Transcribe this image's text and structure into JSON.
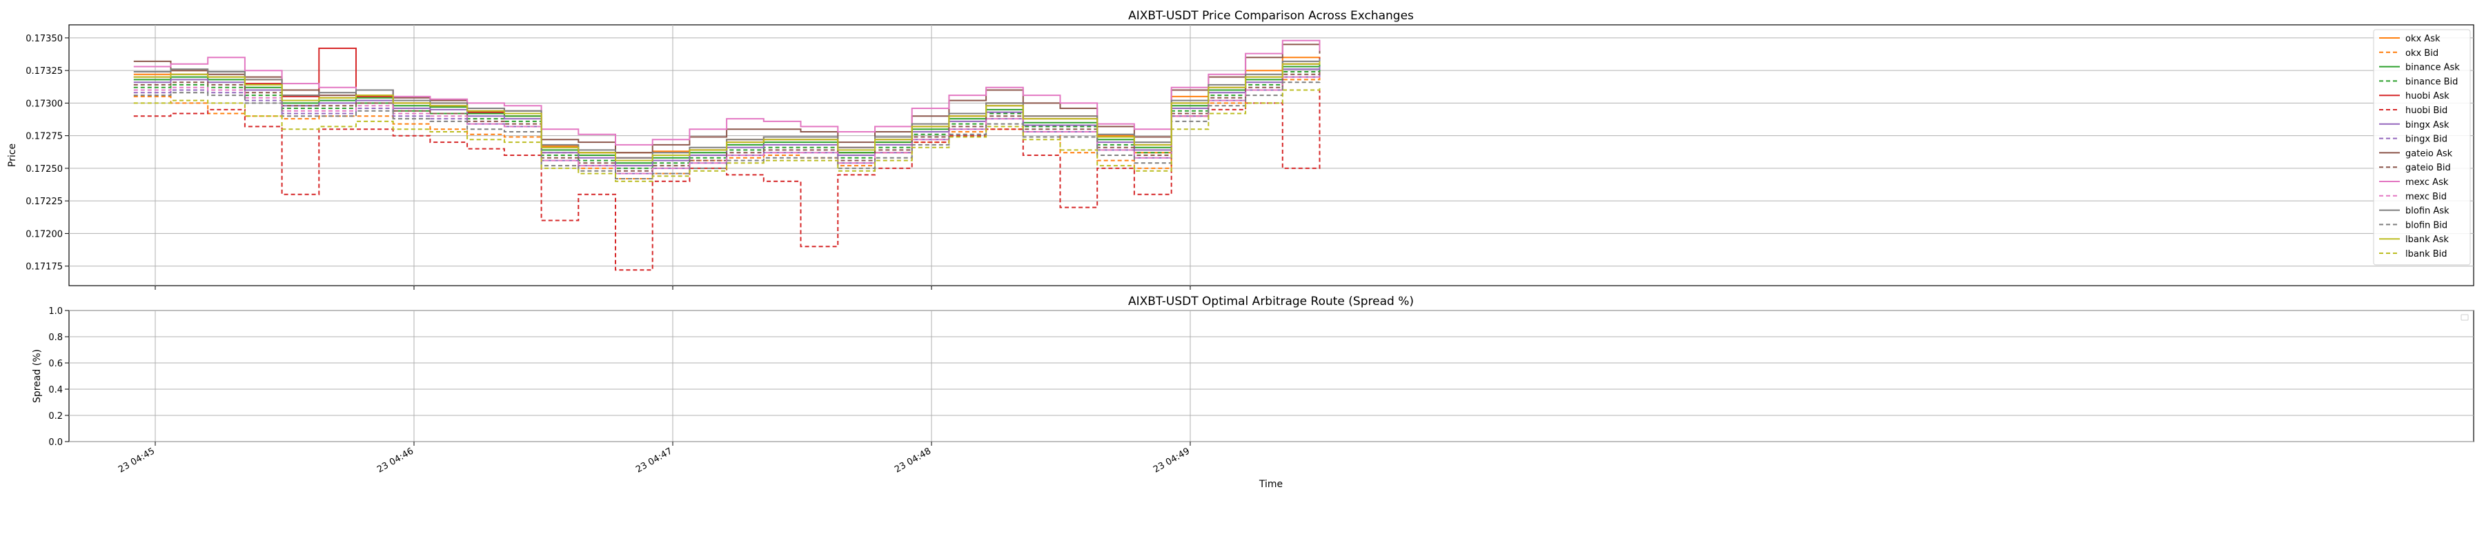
{
  "chart_data": [
    {
      "type": "line",
      "title": "AIXBT-USDT Price Comparison Across Exchanges",
      "xlabel": "",
      "ylabel": "Price",
      "ylim": [
        0.1716,
        0.1736
      ],
      "yticks": [
        0.17175,
        0.172,
        0.17225,
        0.1725,
        0.17275,
        0.173,
        0.17325,
        0.1735
      ],
      "ytick_labels": [
        "0.17175",
        "0.17200",
        "0.17225",
        "0.17250",
        "0.17275",
        "0.17300",
        "0.17325",
        "0.17350"
      ],
      "x_range": [
        "04:44:15",
        "04:49:45"
      ],
      "grid": true,
      "legend_position": "right",
      "series": [
        {
          "name": "okx Ask",
          "color": "#ff7f0e",
          "dashed": false,
          "values": [
            0.17322,
            0.17325,
            0.17324,
            0.17318,
            0.17306,
            0.17304,
            0.17306,
            0.173,
            0.173,
            0.17294,
            0.1729,
            0.17267,
            0.17262,
            0.17262,
            0.17263,
            0.17264,
            0.17272,
            0.17274,
            0.17274,
            0.17262,
            0.1727,
            0.17282,
            0.1729,
            0.173,
            0.1729,
            0.1729,
            0.17275,
            0.17262,
            0.17305,
            0.1731,
            0.17325,
            0.17335,
            0.1733
          ]
        },
        {
          "name": "okx Bid",
          "color": "#ff7f0e",
          "dashed": true,
          "values": [
            0.17305,
            0.173,
            0.17292,
            0.1729,
            0.17288,
            0.1729,
            0.1729,
            0.17284,
            0.1728,
            0.17276,
            0.17274,
            0.17262,
            0.1725,
            0.17242,
            0.17246,
            0.17256,
            0.17258,
            0.1726,
            0.17258,
            0.17252,
            0.17262,
            0.1727,
            0.17278,
            0.1728,
            0.17278,
            0.17262,
            0.17256,
            0.1725,
            0.1729,
            0.173,
            0.1731,
            0.17318,
            0.1732
          ]
        },
        {
          "name": "binance Ask",
          "color": "#2ca02c",
          "dashed": false,
          "values": [
            0.17318,
            0.1732,
            0.17318,
            0.17312,
            0.173,
            0.17302,
            0.17304,
            0.17298,
            0.17297,
            0.17292,
            0.1729,
            0.17264,
            0.1726,
            0.17254,
            0.17258,
            0.17262,
            0.17268,
            0.1727,
            0.1727,
            0.17262,
            0.1727,
            0.1728,
            0.17288,
            0.17295,
            0.17285,
            0.17285,
            0.17272,
            0.17266,
            0.17298,
            0.1731,
            0.17318,
            0.17328,
            0.1733
          ]
        },
        {
          "name": "binance Bid",
          "color": "#2ca02c",
          "dashed": true,
          "values": [
            0.17312,
            0.17314,
            0.17312,
            0.17306,
            0.17296,
            0.17296,
            0.173,
            0.17294,
            0.17292,
            0.17288,
            0.17286,
            0.1726,
            0.17256,
            0.1725,
            0.17254,
            0.17258,
            0.17264,
            0.17266,
            0.17266,
            0.17258,
            0.17266,
            0.17276,
            0.17284,
            0.17292,
            0.17282,
            0.17282,
            0.17268,
            0.17262,
            0.17294,
            0.17306,
            0.17314,
            0.17324,
            0.17326
          ]
        },
        {
          "name": "huobi Ask",
          "color": "#d62728",
          "dashed": false,
          "values": [
            0.1732,
            0.17322,
            0.1732,
            0.17315,
            0.17305,
            0.17342,
            0.17305,
            0.173,
            0.17298,
            0.17293,
            0.17292,
            0.17266,
            0.17262,
            0.17258,
            0.1726,
            0.17264,
            0.1727,
            0.17272,
            0.17272,
            0.17266,
            0.17272,
            0.17282,
            0.1729,
            0.17298,
            0.17288,
            0.17288,
            0.17274,
            0.17268,
            0.173,
            0.17312,
            0.1732,
            0.1733,
            0.17335
          ]
        },
        {
          "name": "huobi Bid",
          "color": "#d62728",
          "dashed": true,
          "values": [
            0.1729,
            0.17292,
            0.17295,
            0.17282,
            0.1723,
            0.1728,
            0.1728,
            0.17275,
            0.1727,
            0.17265,
            0.1726,
            0.1721,
            0.1723,
            0.17172,
            0.1724,
            0.1725,
            0.17245,
            0.1724,
            0.1719,
            0.17245,
            0.1725,
            0.1727,
            0.17275,
            0.1728,
            0.1726,
            0.1722,
            0.1725,
            0.1723,
            0.1729,
            0.17295,
            0.173,
            0.1725,
            0.1731
          ]
        },
        {
          "name": "bingx Ask",
          "color": "#9467bd",
          "dashed": false,
          "values": [
            0.17316,
            0.17318,
            0.17316,
            0.1731,
            0.17298,
            0.173,
            0.17302,
            0.17296,
            0.17295,
            0.1729,
            0.17288,
            0.17262,
            0.17258,
            0.17252,
            0.17256,
            0.1726,
            0.17266,
            0.17268,
            0.17268,
            0.1726,
            0.17268,
            0.17278,
            0.17286,
            0.17293,
            0.17283,
            0.17283,
            0.1727,
            0.17264,
            0.17296,
            0.17308,
            0.17316,
            0.17326,
            0.17328
          ]
        },
        {
          "name": "bingx Bid",
          "color": "#9467bd",
          "dashed": true,
          "values": [
            0.17308,
            0.1731,
            0.17308,
            0.17302,
            0.17292,
            0.17292,
            0.17296,
            0.1729,
            0.17288,
            0.17284,
            0.17282,
            0.17256,
            0.17252,
            0.17246,
            0.1725,
            0.17254,
            0.1726,
            0.17262,
            0.17262,
            0.17254,
            0.17262,
            0.17272,
            0.1728,
            0.17288,
            0.17278,
            0.17278,
            0.17264,
            0.17258,
            0.1729,
            0.17302,
            0.1731,
            0.1732,
            0.17322
          ]
        },
        {
          "name": "gateio Ask",
          "color": "#8c564b",
          "dashed": false,
          "values": [
            0.17332,
            0.17325,
            0.17322,
            0.1732,
            0.1731,
            0.17306,
            0.1731,
            0.17304,
            0.17302,
            0.17296,
            0.17294,
            0.17272,
            0.1727,
            0.17262,
            0.17268,
            0.17274,
            0.1728,
            0.1728,
            0.17278,
            0.1727,
            0.17278,
            0.1729,
            0.17302,
            0.1731,
            0.173,
            0.17296,
            0.17282,
            0.17274,
            0.1731,
            0.1732,
            0.17335,
            0.17345,
            0.17338
          ]
        },
        {
          "name": "gateio Bid",
          "color": "#8c564b",
          "dashed": true,
          "values": [
            0.17314,
            0.17316,
            0.17314,
            0.17308,
            0.17298,
            0.17298,
            0.173,
            0.17294,
            0.17292,
            0.17286,
            0.17284,
            0.17258,
            0.17254,
            0.17248,
            0.17252,
            0.17256,
            0.17262,
            0.17264,
            0.17264,
            0.17256,
            0.17264,
            0.17274,
            0.17282,
            0.1729,
            0.1728,
            0.1728,
            0.17266,
            0.1726,
            0.17292,
            0.17304,
            0.17312,
            0.17322,
            0.17324
          ]
        },
        {
          "name": "mexc Ask",
          "color": "#e377c2",
          "dashed": false,
          "values": [
            0.17328,
            0.1733,
            0.17335,
            0.17325,
            0.17315,
            0.17312,
            0.1731,
            0.17305,
            0.17303,
            0.173,
            0.17298,
            0.1728,
            0.17276,
            0.17268,
            0.17272,
            0.1728,
            0.17288,
            0.17286,
            0.17282,
            0.17278,
            0.17282,
            0.17296,
            0.17306,
            0.17312,
            0.17306,
            0.173,
            0.17284,
            0.1728,
            0.17312,
            0.17322,
            0.17338,
            0.17348,
            0.1734
          ]
        },
        {
          "name": "mexc Bid",
          "color": "#e377c2",
          "dashed": true,
          "values": [
            0.1731,
            0.17312,
            0.1731,
            0.17304,
            0.17294,
            0.17294,
            0.17298,
            0.17292,
            0.1729,
            0.17284,
            0.17282,
            0.17256,
            0.17252,
            0.17246,
            0.1725,
            0.17254,
            0.1726,
            0.17262,
            0.17262,
            0.17254,
            0.17262,
            0.17272,
            0.1728,
            0.17288,
            0.17278,
            0.17278,
            0.17264,
            0.17258,
            0.1729,
            0.17302,
            0.1731,
            0.1732,
            0.17322
          ]
        },
        {
          "name": "blofin Ask",
          "color": "#7f7f7f",
          "dashed": false,
          "values": [
            0.17324,
            0.17326,
            0.17324,
            0.17318,
            0.17306,
            0.17308,
            0.1731,
            0.17302,
            0.173,
            0.17296,
            0.17294,
            0.17268,
            0.17264,
            0.17258,
            0.17262,
            0.17266,
            0.17272,
            0.17274,
            0.17274,
            0.17266,
            0.17274,
            0.17284,
            0.17292,
            0.173,
            0.1729,
            0.1729,
            0.17276,
            0.1727,
            0.17302,
            0.17314,
            0.17322,
            0.17332,
            0.17334
          ]
        },
        {
          "name": "blofin Bid",
          "color": "#7f7f7f",
          "dashed": true,
          "values": [
            0.17306,
            0.17308,
            0.17306,
            0.173,
            0.1729,
            0.1729,
            0.17294,
            0.17288,
            0.17286,
            0.1728,
            0.17278,
            0.17252,
            0.17248,
            0.17242,
            0.17246,
            0.1725,
            0.17256,
            0.17258,
            0.17258,
            0.1725,
            0.17258,
            0.17268,
            0.17276,
            0.17284,
            0.17274,
            0.17274,
            0.1726,
            0.17254,
            0.17286,
            0.17298,
            0.17306,
            0.17316,
            0.17318
          ]
        },
        {
          "name": "lbank Ask",
          "color": "#bcbd22",
          "dashed": false,
          "values": [
            0.1732,
            0.17322,
            0.1732,
            0.17314,
            0.17302,
            0.17304,
            0.17306,
            0.173,
            0.17298,
            0.17294,
            0.17292,
            0.17266,
            0.17262,
            0.17256,
            0.1726,
            0.17264,
            0.1727,
            0.17272,
            0.17272,
            0.17264,
            0.17272,
            0.17282,
            0.1729,
            0.17298,
            0.17288,
            0.17288,
            0.17274,
            0.17268,
            0.173,
            0.17312,
            0.1732,
            0.1733,
            0.17332
          ]
        },
        {
          "name": "lbank Bid",
          "color": "#bcbd22",
          "dashed": true,
          "values": [
            0.173,
            0.17302,
            0.173,
            0.1729,
            0.1728,
            0.17282,
            0.17286,
            0.1728,
            0.17278,
            0.17272,
            0.1727,
            0.1725,
            0.17246,
            0.1724,
            0.17244,
            0.17248,
            0.17254,
            0.17256,
            0.17256,
            0.17248,
            0.17256,
            0.17266,
            0.17274,
            0.17282,
            0.17272,
            0.17264,
            0.17252,
            0.17248,
            0.1728,
            0.17292,
            0.173,
            0.1731,
            0.17312
          ]
        }
      ]
    },
    {
      "type": "line",
      "title": "AIXBT-USDT Optimal Arbitrage Route (Spread %)",
      "xlabel": "Time",
      "ylabel": "Spread (%)",
      "ylim": [
        0.0,
        1.0
      ],
      "yticks": [
        0.0,
        0.2,
        0.4,
        0.6,
        0.8,
        1.0
      ],
      "ytick_labels": [
        "0.0",
        "0.2",
        "0.4",
        "0.6",
        "0.8",
        "1.0"
      ],
      "xticks": [
        "04:45",
        "04:46",
        "04:47",
        "04:48",
        "04:49"
      ],
      "xtick_labels": [
        "23 04:45",
        "23 04:46",
        "23 04:47",
        "23 04:48",
        "23 04:49"
      ],
      "grid": true,
      "legend_position": "top-right",
      "series": []
    }
  ]
}
